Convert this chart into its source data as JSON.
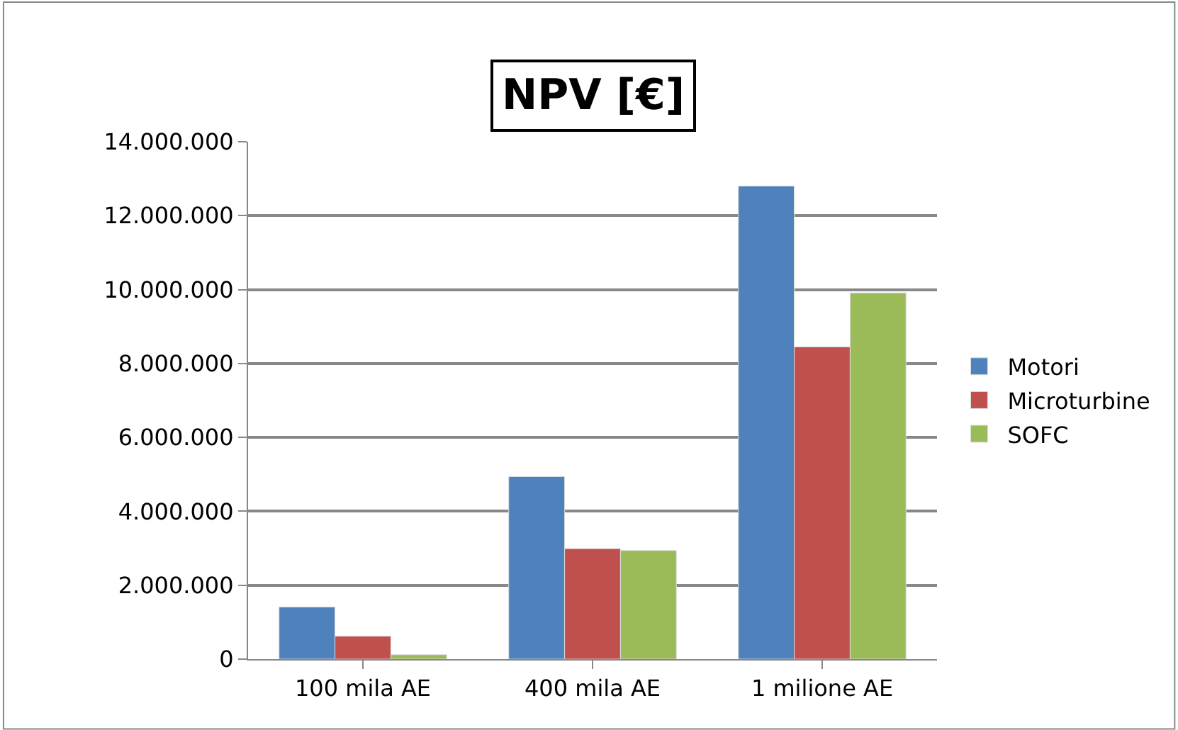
{
  "chart_data": {
    "type": "bar",
    "title": "NPV [€]",
    "categories": [
      "100 mila AE",
      "400 mila AE",
      "1 milione AE"
    ],
    "series": [
      {
        "name": "Motori",
        "color": "#4f81bd",
        "values": [
          1410000,
          4940000,
          12800000
        ]
      },
      {
        "name": "Microturbine",
        "color": "#c0504d",
        "values": [
          620000,
          2990000,
          8450000
        ]
      },
      {
        "name": "SOFC",
        "color": "#9bbb59",
        "values": [
          120000,
          2940000,
          9910000
        ]
      }
    ],
    "ylim": [
      0,
      14000000
    ],
    "yticks": [
      {
        "value": 0,
        "label": "0"
      },
      {
        "value": 2000000,
        "label": "2.000.000"
      },
      {
        "value": 4000000,
        "label": "4.000.000"
      },
      {
        "value": 6000000,
        "label": "6.000.000"
      },
      {
        "value": 8000000,
        "label": "8.000.000"
      },
      {
        "value": 10000000,
        "label": "10.000.000"
      },
      {
        "value": 12000000,
        "label": "12.000.000"
      },
      {
        "value": 14000000,
        "label": "14.000.000"
      }
    ],
    "grid": "y",
    "legend": "right"
  }
}
